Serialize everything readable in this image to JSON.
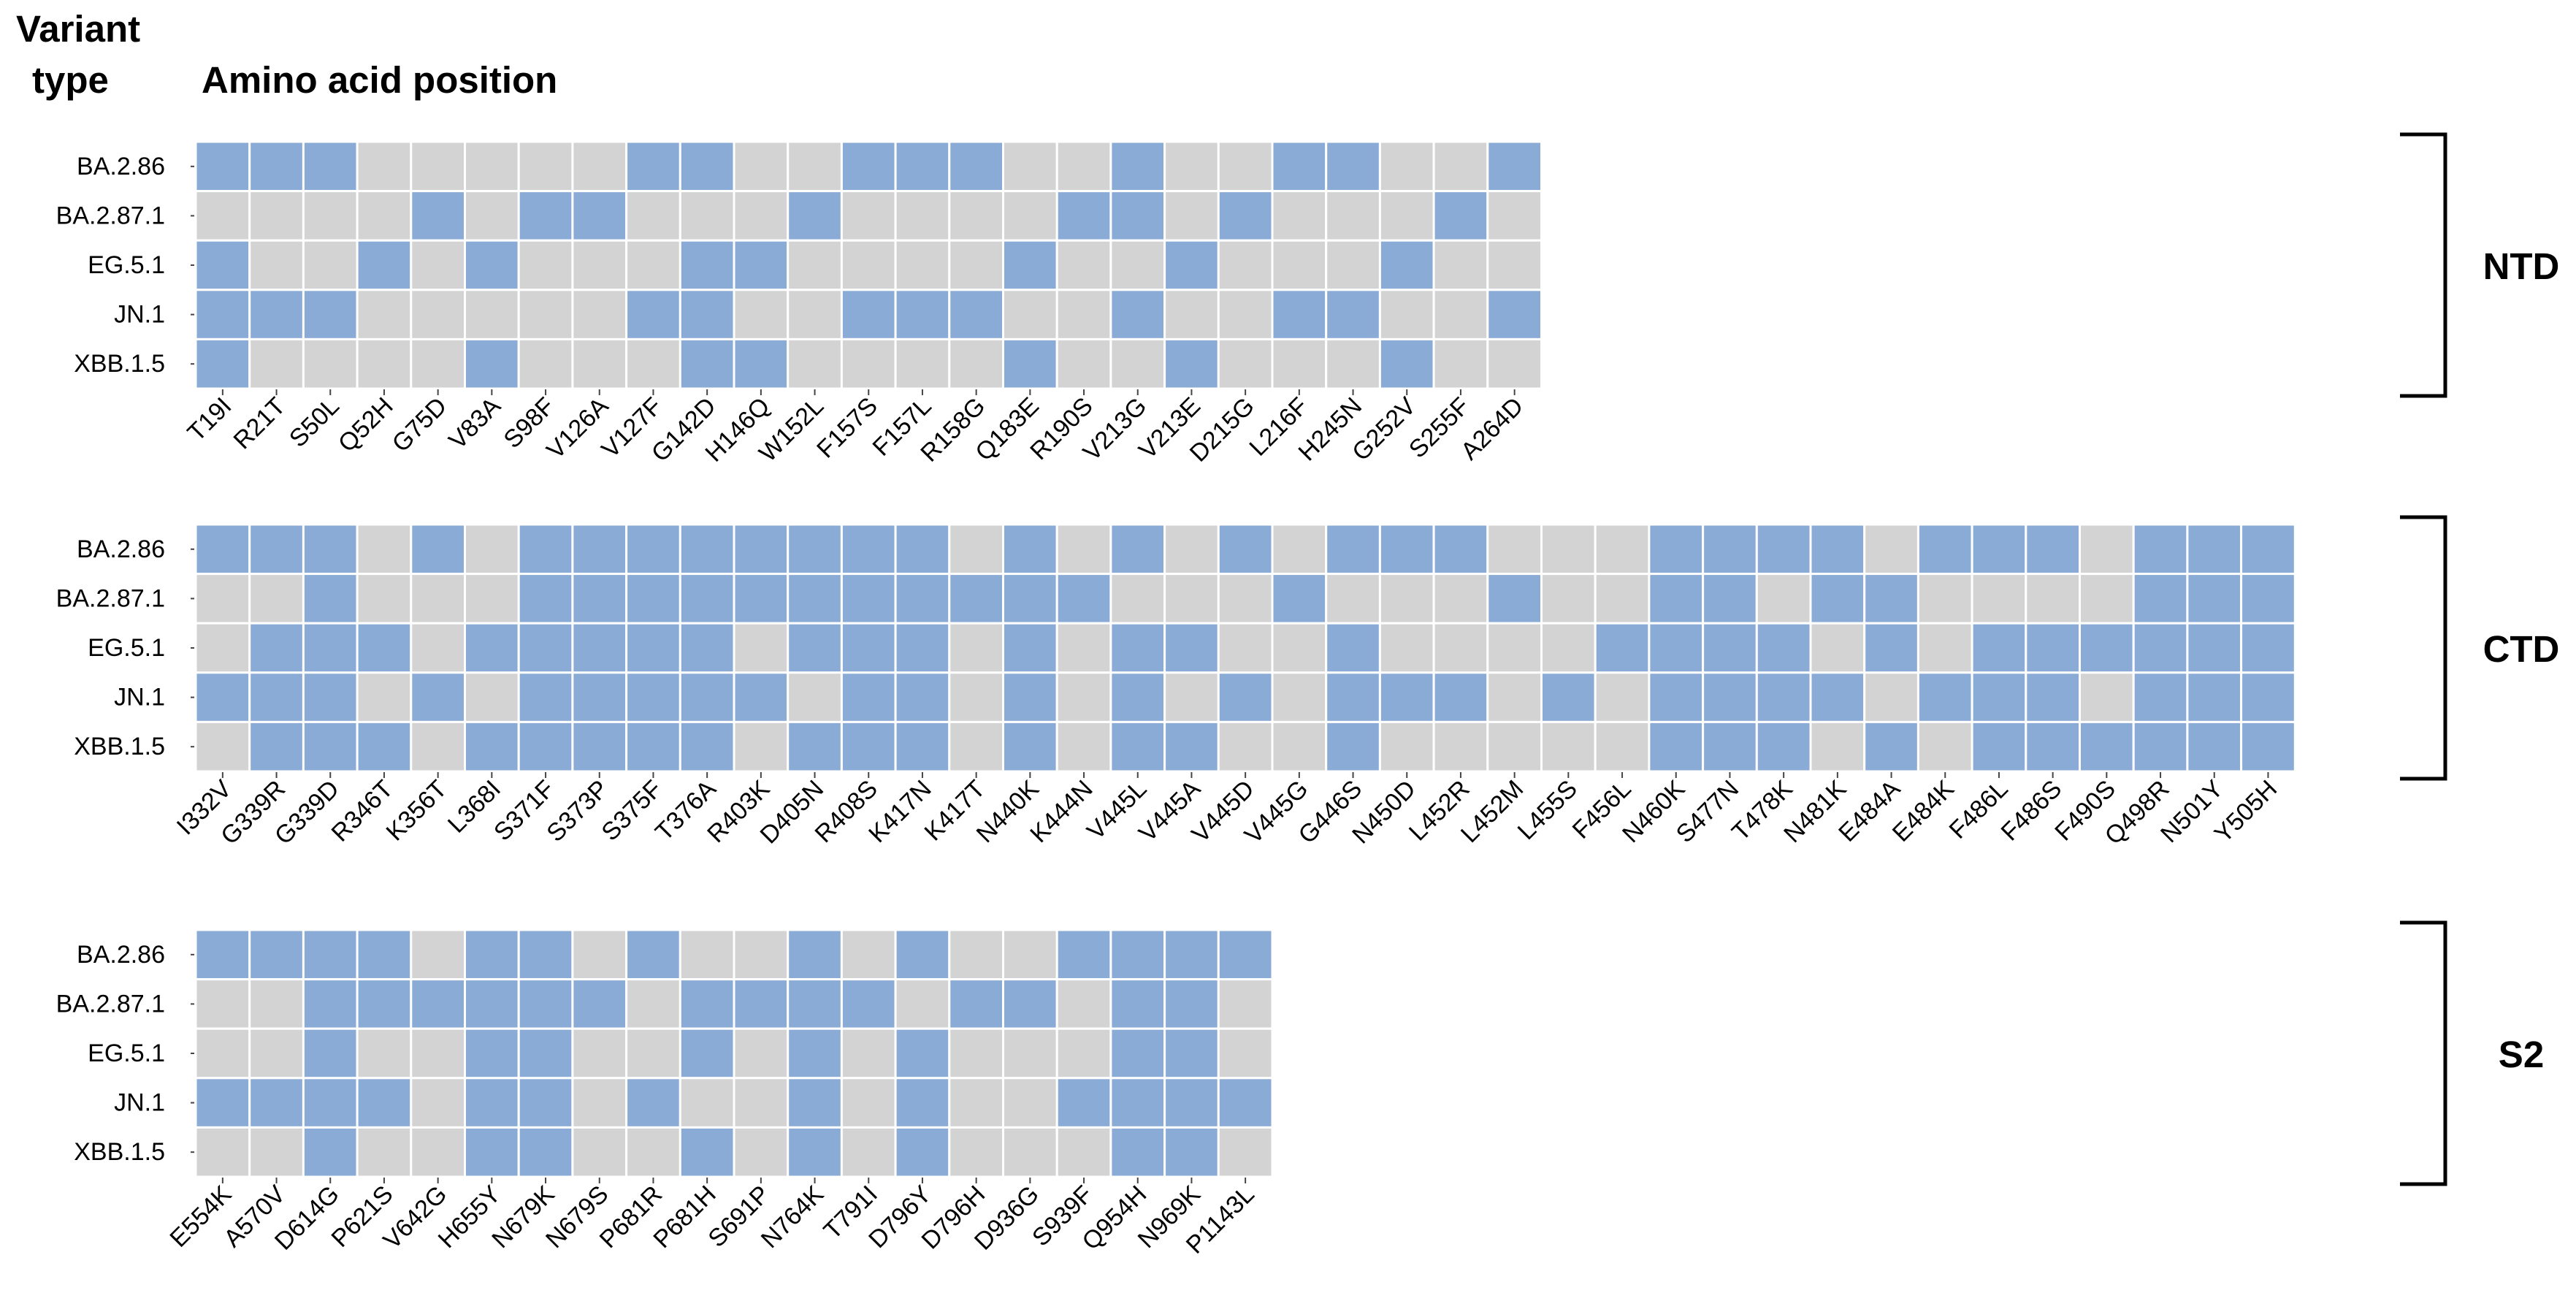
{
  "header": {
    "variant_label_line1": "Variant",
    "variant_label_line2": "type",
    "position_label": "Amino acid position"
  },
  "colors": {
    "present": "#8aabd6",
    "absent": "#d3d3d3",
    "cell_border": "#ffffff",
    "text": "#000000"
  },
  "chart_data": [
    {
      "type": "heatmap",
      "region": "NTD",
      "xlabel": "Amino acid position",
      "ylabel": "Variant type",
      "rows": [
        "BA.2.86",
        "BA.2.87.1",
        "EG.5.1",
        "JN.1",
        "XBB.1.5"
      ],
      "columns": [
        "T19I",
        "R21T",
        "S50L",
        "Q52H",
        "G75D",
        "V83A",
        "S98F",
        "V126A",
        "V127F",
        "G142D",
        "H146Q",
        "W152L",
        "F157S",
        "F157L",
        "R158G",
        "Q183E",
        "R190S",
        "V213G",
        "V213E",
        "D215G",
        "L216F",
        "H245N",
        "G252V",
        "S255F",
        "A264D"
      ],
      "values": [
        [
          1,
          1,
          1,
          0,
          0,
          0,
          0,
          0,
          1,
          1,
          0,
          0,
          1,
          1,
          1,
          0,
          0,
          1,
          0,
          0,
          1,
          1,
          0,
          0,
          1
        ],
        [
          0,
          0,
          0,
          0,
          1,
          0,
          1,
          1,
          0,
          0,
          0,
          1,
          0,
          0,
          0,
          0,
          1,
          1,
          0,
          1,
          0,
          0,
          0,
          1,
          0
        ],
        [
          1,
          0,
          0,
          1,
          0,
          1,
          0,
          0,
          0,
          1,
          1,
          0,
          0,
          0,
          0,
          1,
          0,
          0,
          1,
          0,
          0,
          0,
          1,
          0,
          0
        ],
        [
          1,
          1,
          1,
          0,
          0,
          0,
          0,
          0,
          1,
          1,
          0,
          0,
          1,
          1,
          1,
          0,
          0,
          1,
          0,
          0,
          1,
          1,
          0,
          0,
          1
        ],
        [
          1,
          0,
          0,
          0,
          0,
          1,
          0,
          0,
          0,
          1,
          1,
          0,
          0,
          0,
          0,
          1,
          0,
          0,
          1,
          0,
          0,
          0,
          1,
          0,
          0
        ]
      ]
    },
    {
      "type": "heatmap",
      "region": "CTD",
      "xlabel": "Amino acid position",
      "ylabel": "Variant type",
      "rows": [
        "BA.2.86",
        "BA.2.87.1",
        "EG.5.1",
        "JN.1",
        "XBB.1.5"
      ],
      "columns": [
        "I332V",
        "G339R",
        "G339D",
        "R346T",
        "K356T",
        "L368I",
        "S371F",
        "S373P",
        "S375F",
        "T376A",
        "R403K",
        "D405N",
        "R408S",
        "K417N",
        "K417T",
        "N440K",
        "K444N",
        "V445L",
        "V445A",
        "V445D",
        "V445G",
        "G446S",
        "N450D",
        "L452R",
        "L452M",
        "L455S",
        "F456L",
        "N460K",
        "S477N",
        "T478K",
        "N481K",
        "E484A",
        "E484K",
        "F486L",
        "F486S",
        "F490S",
        "Q498R",
        "N501Y",
        "Y505H"
      ],
      "values": [
        [
          1,
          1,
          1,
          0,
          1,
          0,
          1,
          1,
          1,
          1,
          1,
          1,
          1,
          1,
          0,
          1,
          0,
          1,
          0,
          1,
          0,
          1,
          1,
          1,
          0,
          0,
          0,
          1,
          1,
          1,
          1,
          0,
          1,
          1,
          1,
          0,
          1,
          1,
          1
        ],
        [
          0,
          0,
          1,
          0,
          0,
          0,
          1,
          1,
          1,
          1,
          1,
          1,
          1,
          1,
          1,
          1,
          1,
          0,
          0,
          0,
          1,
          0,
          0,
          0,
          1,
          0,
          0,
          1,
          1,
          0,
          1,
          1,
          0,
          0,
          0,
          0,
          1,
          1,
          1
        ],
        [
          0,
          1,
          1,
          1,
          0,
          1,
          1,
          1,
          1,
          1,
          0,
          1,
          1,
          1,
          0,
          1,
          0,
          1,
          1,
          0,
          0,
          1,
          0,
          0,
          0,
          0,
          1,
          1,
          1,
          1,
          0,
          1,
          0,
          1,
          1,
          1,
          1,
          1,
          1
        ],
        [
          1,
          1,
          1,
          0,
          1,
          0,
          1,
          1,
          1,
          1,
          1,
          0,
          1,
          1,
          0,
          1,
          0,
          1,
          0,
          1,
          0,
          1,
          1,
          1,
          0,
          1,
          0,
          1,
          1,
          1,
          1,
          0,
          1,
          1,
          1,
          0,
          1,
          1,
          1
        ],
        [
          0,
          1,
          1,
          1,
          0,
          1,
          1,
          1,
          1,
          1,
          0,
          1,
          1,
          1,
          0,
          1,
          0,
          1,
          1,
          0,
          0,
          1,
          0,
          0,
          0,
          0,
          0,
          1,
          1,
          1,
          0,
          1,
          0,
          1,
          1,
          1,
          1,
          1,
          1
        ]
      ]
    },
    {
      "type": "heatmap",
      "region": "S2",
      "xlabel": "Amino acid position",
      "ylabel": "Variant type",
      "rows": [
        "BA.2.86",
        "BA.2.87.1",
        "EG.5.1",
        "JN.1",
        "XBB.1.5"
      ],
      "columns": [
        "E554K",
        "A570V",
        "D614G",
        "P621S",
        "V642G",
        "H655Y",
        "N679K",
        "N679S",
        "P681R",
        "P681H",
        "S691P",
        "N764K",
        "T791I",
        "D796Y",
        "D796H",
        "D936G",
        "S939F",
        "Q954H",
        "N969K",
        "P1143L"
      ],
      "values": [
        [
          1,
          1,
          1,
          1,
          0,
          1,
          1,
          0,
          1,
          0,
          0,
          1,
          0,
          1,
          0,
          0,
          1,
          1,
          1,
          1
        ],
        [
          0,
          0,
          1,
          1,
          1,
          1,
          1,
          1,
          0,
          1,
          1,
          1,
          1,
          0,
          1,
          1,
          0,
          1,
          1,
          0
        ],
        [
          0,
          0,
          1,
          0,
          0,
          1,
          1,
          0,
          0,
          1,
          0,
          1,
          0,
          1,
          0,
          0,
          0,
          1,
          1,
          0
        ],
        [
          1,
          1,
          1,
          1,
          0,
          1,
          1,
          0,
          1,
          0,
          0,
          1,
          0,
          1,
          0,
          0,
          1,
          1,
          1,
          1
        ],
        [
          0,
          0,
          1,
          0,
          0,
          1,
          1,
          0,
          0,
          1,
          0,
          1,
          0,
          1,
          0,
          0,
          0,
          1,
          1,
          0
        ]
      ]
    }
  ]
}
